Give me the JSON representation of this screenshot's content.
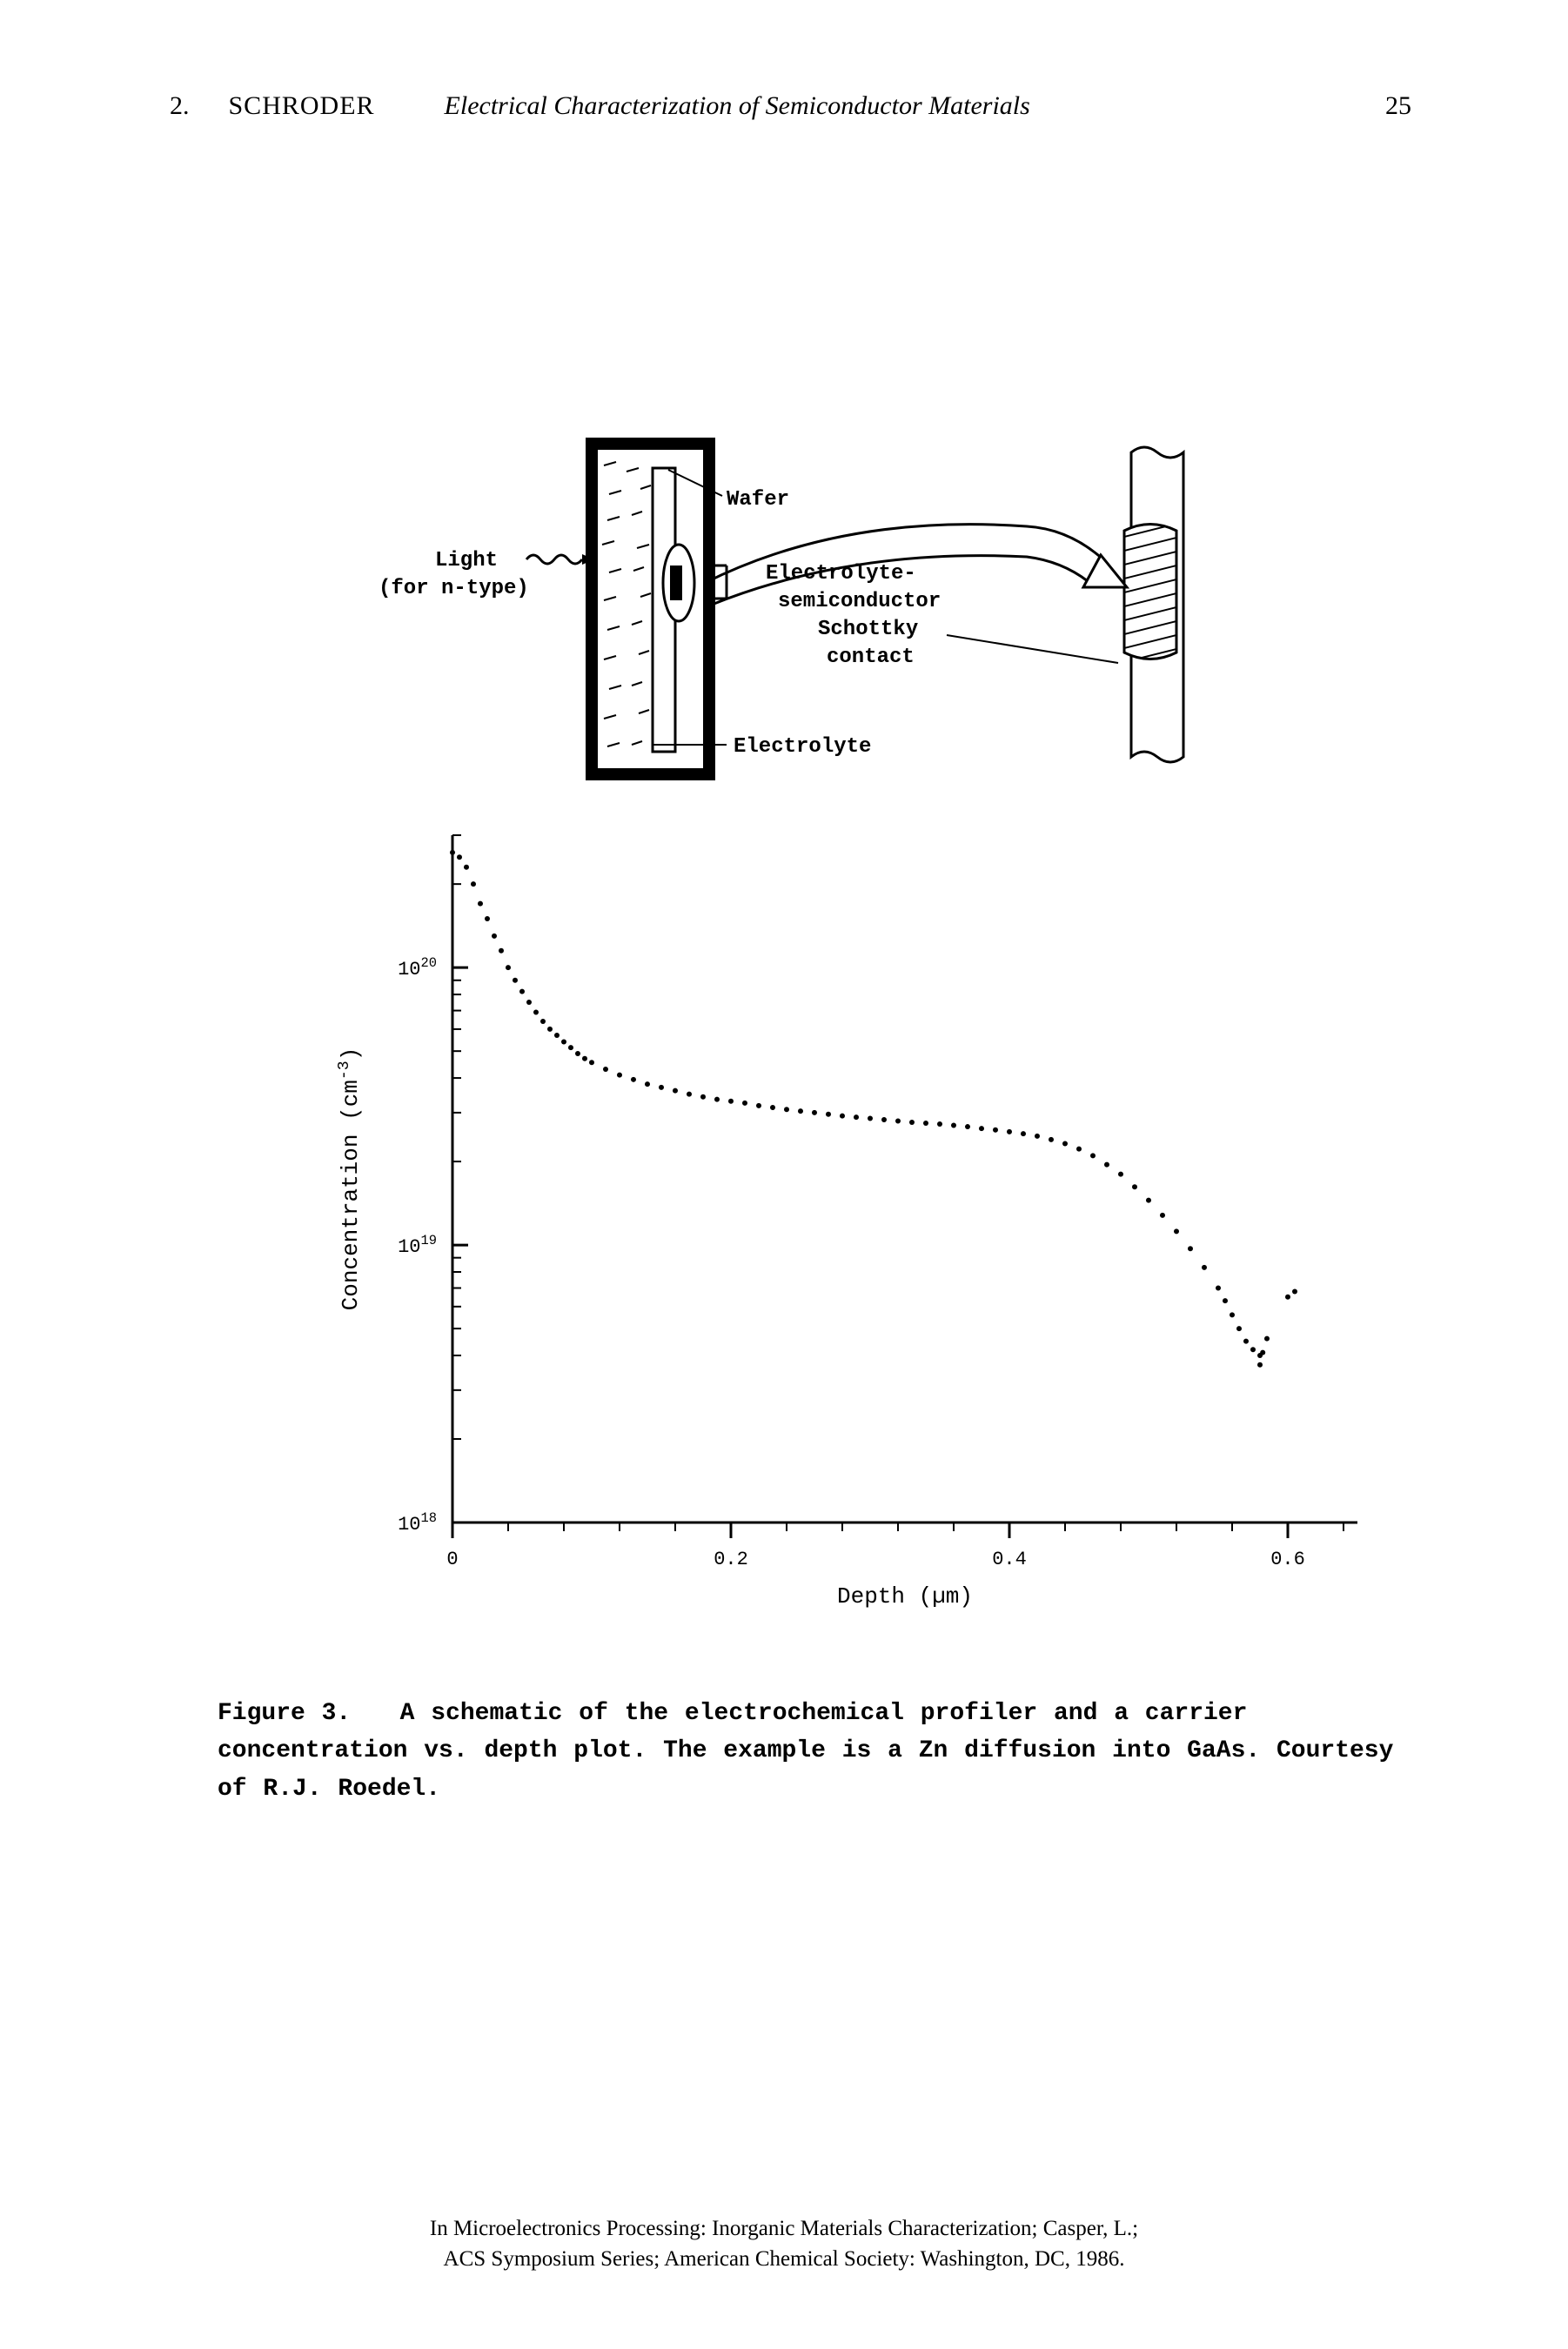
{
  "header": {
    "chapter_number": "2.",
    "author": "SCHRODER",
    "chapter_title": "Electrical Characterization of Semiconductor Materials",
    "page_number": "25"
  },
  "schematic": {
    "labels": {
      "light": "Light",
      "light_note": "(for n-type)",
      "wafer": "Wafer",
      "electrolyte_semi": "Electrolyte-",
      "semiconductor": "semiconductor",
      "schottky": "Schottky",
      "contact": "contact",
      "electrolyte": "Electrolyte"
    },
    "colors": {
      "stroke": "#000000",
      "background": "#ffffff",
      "hatch": "#000000"
    },
    "line_width_outer": 8,
    "line_width_inner": 2
  },
  "plot": {
    "type": "scatter",
    "xlabel": "Depth (µm)",
    "ylabel": "Concentration (cm⁻³)",
    "xlim": [
      0,
      0.65
    ],
    "ylim": [
      1e+18,
      3e+20
    ],
    "yscale": "log",
    "xticks": [
      0,
      0.2,
      0.4,
      0.6
    ],
    "xtick_labels": [
      "0",
      "0.2",
      "0.4",
      "0.6"
    ],
    "xminor_step": 0.04,
    "yticks": [
      1e+18,
      1e+19,
      1e+20
    ],
    "ytick_labels": [
      "10¹⁸",
      "10¹⁹",
      "10²⁰"
    ],
    "marker_size": 3,
    "marker_color": "#000000",
    "axis_color": "#000000",
    "background_color": "#ffffff",
    "label_fontsize": 26,
    "tick_fontsize": 22,
    "line_width": 3,
    "data": [
      [
        0.0,
        2.6e+20
      ],
      [
        0.005,
        2.5e+20
      ],
      [
        0.01,
        2.3e+20
      ],
      [
        0.015,
        2e+20
      ],
      [
        0.02,
        1.7e+20
      ],
      [
        0.025,
        1.5e+20
      ],
      [
        0.03,
        1.3e+20
      ],
      [
        0.035,
        1.15e+20
      ],
      [
        0.04,
        1e+20
      ],
      [
        0.045,
        9e+19
      ],
      [
        0.05,
        8.2e+19
      ],
      [
        0.055,
        7.5e+19
      ],
      [
        0.06,
        6.9e+19
      ],
      [
        0.065,
        6.4e+19
      ],
      [
        0.07,
        6e+19
      ],
      [
        0.075,
        5.7e+19
      ],
      [
        0.08,
        5.4e+19
      ],
      [
        0.085,
        5.15e+19
      ],
      [
        0.09,
        4.9e+19
      ],
      [
        0.095,
        4.7e+19
      ],
      [
        0.1,
        4.55e+19
      ],
      [
        0.11,
        4.3e+19
      ],
      [
        0.12,
        4.1e+19
      ],
      [
        0.13,
        3.95e+19
      ],
      [
        0.14,
        3.8e+19
      ],
      [
        0.15,
        3.7e+19
      ],
      [
        0.16,
        3.6e+19
      ],
      [
        0.17,
        3.5e+19
      ],
      [
        0.18,
        3.42e+19
      ],
      [
        0.19,
        3.35e+19
      ],
      [
        0.2,
        3.3e+19
      ],
      [
        0.21,
        3.25e+19
      ],
      [
        0.22,
        3.18e+19
      ],
      [
        0.23,
        3.13e+19
      ],
      [
        0.24,
        3.08e+19
      ],
      [
        0.25,
        3.04e+19
      ],
      [
        0.26,
        3e+19
      ],
      [
        0.27,
        2.96e+19
      ],
      [
        0.28,
        2.92e+19
      ],
      [
        0.29,
        2.89e+19
      ],
      [
        0.3,
        2.86e+19
      ],
      [
        0.31,
        2.83e+19
      ],
      [
        0.32,
        2.8e+19
      ],
      [
        0.33,
        2.77e+19
      ],
      [
        0.34,
        2.75e+19
      ],
      [
        0.35,
        2.73e+19
      ],
      [
        0.36,
        2.7e+19
      ],
      [
        0.37,
        2.67e+19
      ],
      [
        0.38,
        2.63e+19
      ],
      [
        0.39,
        2.6e+19
      ],
      [
        0.4,
        2.56e+19
      ],
      [
        0.41,
        2.52e+19
      ],
      [
        0.42,
        2.47e+19
      ],
      [
        0.43,
        2.4e+19
      ],
      [
        0.44,
        2.32e+19
      ],
      [
        0.45,
        2.22e+19
      ],
      [
        0.46,
        2.1e+19
      ],
      [
        0.47,
        1.95e+19
      ],
      [
        0.48,
        1.8e+19
      ],
      [
        0.49,
        1.62e+19
      ],
      [
        0.5,
        1.45e+19
      ],
      [
        0.51,
        1.28e+19
      ],
      [
        0.52,
        1.12e+19
      ],
      [
        0.53,
        9.7e+18
      ],
      [
        0.54,
        8.3e+18
      ],
      [
        0.55,
        7e+18
      ],
      [
        0.555,
        6.3e+18
      ],
      [
        0.56,
        5.6e+18
      ],
      [
        0.565,
        5e+18
      ],
      [
        0.57,
        4.5e+18
      ],
      [
        0.575,
        4.2e+18
      ],
      [
        0.58,
        4e+18
      ],
      [
        0.582,
        4.1e+18
      ],
      [
        0.585,
        4.6e+18
      ],
      [
        0.6,
        6.5e+18
      ],
      [
        0.605,
        6.8e+18
      ],
      [
        0.58,
        3.7e+18
      ]
    ]
  },
  "caption": {
    "figure_label": "Figure 3.",
    "text": "A schematic of the electrochemical profiler and a carrier concentration vs. depth plot.  The example is a Zn diffusion into GaAs.  Courtesy of R.J. Roedel."
  },
  "footer": {
    "line1": "In Microelectronics Processing: Inorganic Materials Characterization; Casper, L.;",
    "line2": "ACS Symposium Series; American Chemical Society: Washington, DC, 1986."
  }
}
